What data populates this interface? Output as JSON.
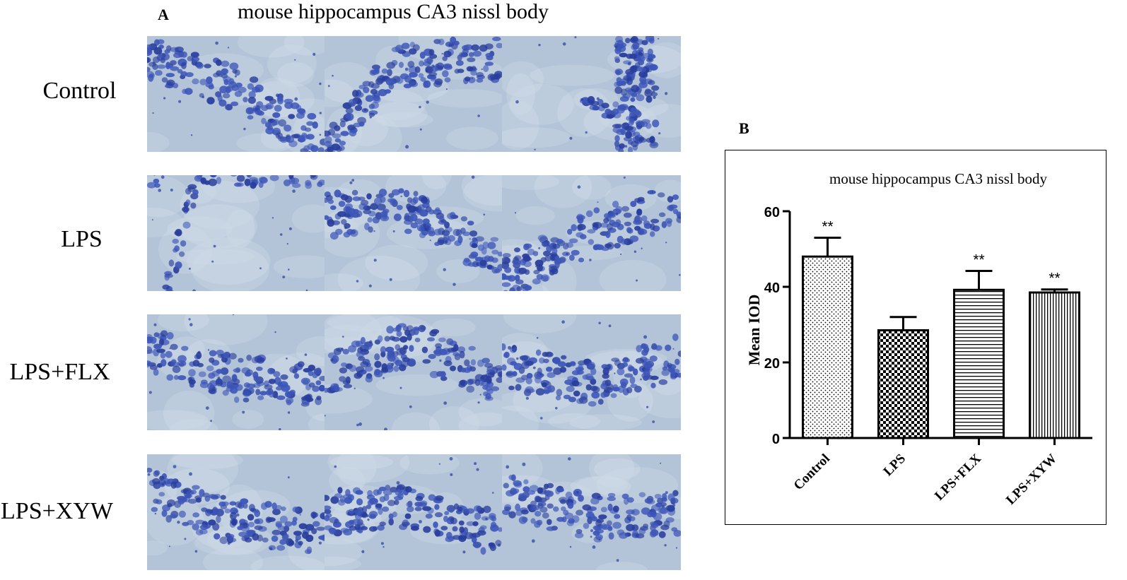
{
  "panel_a": {
    "letter": "A",
    "title": "mouse hippocampus CA3 nissl body",
    "rows": [
      "Control",
      "LPS",
      "LPS+FLX",
      "LPS+XYW"
    ],
    "stain_colors": {
      "background": "#b3c3d8",
      "cell": "#3c55b8",
      "cell_dark": "#283d9c",
      "pale": "#d2dce8"
    }
  },
  "panel_b": {
    "letter": "B"
  },
  "chart_data": {
    "type": "bar",
    "title": "mouse hippocampus CA3 nissl body",
    "xlabel": "",
    "ylabel": "Mean IOD",
    "ylim": [
      0,
      60
    ],
    "yticks": [
      0,
      20,
      40,
      60
    ],
    "categories": [
      "Control",
      "LPS",
      "LPS+FLX",
      "LPS+XYW"
    ],
    "values": [
      48,
      28.5,
      39.2,
      38.5
    ],
    "errors": [
      5,
      3.5,
      5,
      0.8
    ],
    "annotations": [
      "**",
      "",
      "**",
      "**"
    ],
    "patterns": [
      "dots",
      "checkerboard",
      "horizontal-lines",
      "vertical-lines"
    ],
    "grid": false,
    "legend": "none"
  }
}
